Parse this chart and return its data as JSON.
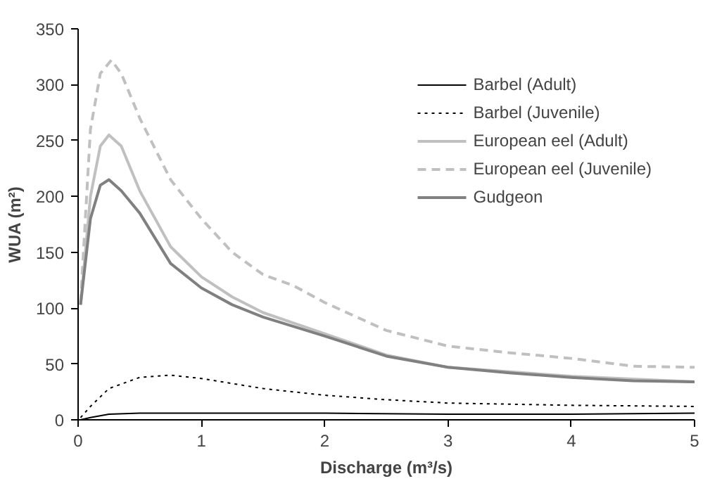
{
  "chart_data": {
    "type": "line",
    "xlabel": "Discharge (m³/s)",
    "ylabel": "WUA (m²)",
    "xlim": [
      0,
      5
    ],
    "ylim": [
      0,
      350
    ],
    "xticks": [
      0,
      1,
      2,
      3,
      4,
      5
    ],
    "yticks": [
      0,
      50,
      100,
      150,
      200,
      250,
      300,
      350
    ],
    "grid": false,
    "legend": "top right",
    "series": [
      {
        "name": "Barbel (Adult)",
        "color": "#000000",
        "line_style": "solid",
        "x": [
          0.02,
          0.1,
          0.25,
          0.5,
          1,
          2,
          3,
          4,
          5
        ],
        "values": [
          0,
          2,
          5,
          6,
          6,
          6,
          5,
          5,
          6
        ]
      },
      {
        "name": "Barbel (Juvenile)",
        "color": "#000000",
        "line_style": "dotted",
        "x": [
          0.02,
          0.1,
          0.25,
          0.5,
          0.75,
          1,
          1.5,
          2,
          2.5,
          3,
          4,
          5
        ],
        "values": [
          2,
          12,
          28,
          38,
          40,
          37,
          28,
          22,
          18,
          15,
          13,
          12
        ]
      },
      {
        "name": "European eel (Adult)",
        "color": "#c0c0c0",
        "line_style": "solid",
        "x": [
          0.02,
          0.1,
          0.18,
          0.25,
          0.35,
          0.5,
          0.75,
          1,
          1.25,
          1.5,
          2,
          2.5,
          3,
          4,
          5
        ],
        "values": [
          103,
          200,
          245,
          255,
          245,
          205,
          155,
          128,
          110,
          96,
          77,
          58,
          47,
          39,
          34
        ]
      },
      {
        "name": "European eel (Juvenile)",
        "color": "#c0c0c0",
        "line_style": "dashed",
        "x": [
          0.02,
          0.1,
          0.18,
          0.27,
          0.35,
          0.5,
          0.75,
          1,
          1.25,
          1.5,
          1.75,
          2,
          2.5,
          3,
          3.5,
          4,
          4.5,
          5
        ],
        "values": [
          105,
          260,
          310,
          322,
          310,
          270,
          215,
          180,
          150,
          130,
          120,
          105,
          80,
          66,
          60,
          55,
          48,
          47
        ]
      },
      {
        "name": "Gudgeon",
        "color": "#808080",
        "line_style": "solid",
        "x": [
          0.02,
          0.1,
          0.18,
          0.25,
          0.35,
          0.5,
          0.75,
          1,
          1.25,
          1.5,
          2,
          2.5,
          3,
          3.5,
          4,
          4.5,
          5
        ],
        "values": [
          103,
          180,
          210,
          215,
          205,
          185,
          140,
          118,
          103,
          92,
          75,
          57,
          47,
          42,
          38,
          35,
          34
        ]
      }
    ]
  }
}
